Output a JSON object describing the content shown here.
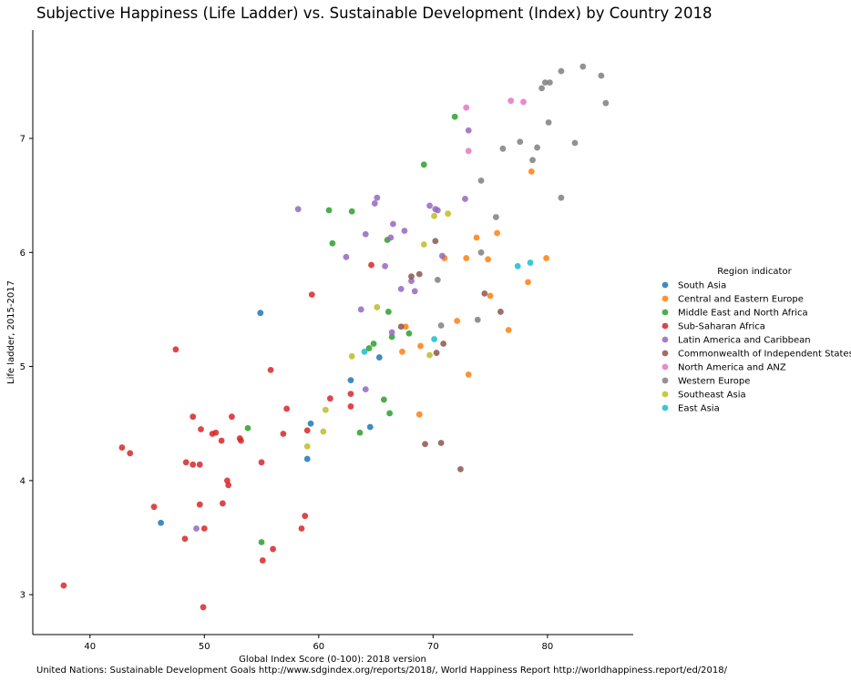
{
  "chart_data": {
    "type": "scatter",
    "title": "Subjective Happiness (Life Ladder) vs. Sustainable Development (Index) by Country 2018",
    "xlabel": "Global Index Score (0-100): 2018 version",
    "ylabel": "Life ladder, 2015-2017",
    "source": "United Nations: Sustainable Development Goals http://www.sdgindex.org/reports/2018/, World Happiness Report http://worldhappiness.report/ed/2018/",
    "xlim": [
      35.0,
      87.5
    ],
    "ylim": [
      2.65,
      7.95
    ],
    "xticks": [
      40,
      50,
      60,
      70,
      80
    ],
    "yticks": [
      3,
      4,
      5,
      6,
      7
    ],
    "grid": false,
    "legend_title": "Region indicator",
    "legend_position": "right",
    "series": [
      {
        "name": "South Asia",
        "color": "#1f77b4",
        "points": [
          [
            54.9,
            5.47
          ],
          [
            46.2,
            3.63
          ],
          [
            59.3,
            4.5
          ],
          [
            59.0,
            4.19
          ],
          [
            62.8,
            4.88
          ],
          [
            65.3,
            5.08
          ],
          [
            64.5,
            4.47
          ]
        ]
      },
      {
        "name": "Central and Eastern Europe",
        "color": "#ff7f0e",
        "points": [
          [
            78.6,
            6.71
          ],
          [
            75.6,
            6.17
          ],
          [
            73.8,
            6.13
          ],
          [
            71.0,
            5.95
          ],
          [
            72.9,
            5.95
          ],
          [
            74.8,
            5.94
          ],
          [
            79.9,
            5.95
          ],
          [
            78.3,
            5.74
          ],
          [
            75.0,
            5.62
          ],
          [
            72.1,
            5.4
          ],
          [
            67.6,
            5.35
          ],
          [
            76.6,
            5.32
          ],
          [
            68.9,
            5.18
          ],
          [
            67.3,
            5.13
          ],
          [
            73.1,
            4.93
          ],
          [
            68.8,
            4.58
          ]
        ]
      },
      {
        "name": "Middle East and North Africa",
        "color": "#2ca02c",
        "points": [
          [
            71.9,
            7.19
          ],
          [
            69.2,
            6.77
          ],
          [
            60.9,
            6.37
          ],
          [
            62.9,
            6.36
          ],
          [
            61.2,
            6.08
          ],
          [
            66.0,
            6.11
          ],
          [
            66.1,
            5.48
          ],
          [
            67.9,
            5.29
          ],
          [
            66.4,
            5.26
          ],
          [
            64.8,
            5.2
          ],
          [
            64.4,
            5.16
          ],
          [
            65.7,
            4.71
          ],
          [
            53.8,
            4.46
          ],
          [
            66.2,
            4.59
          ],
          [
            63.6,
            4.42
          ],
          [
            55.0,
            3.46
          ]
        ]
      },
      {
        "name": "Sub-Saharan Africa",
        "color": "#d62728",
        "points": [
          [
            64.6,
            5.89
          ],
          [
            59.4,
            5.63
          ],
          [
            47.5,
            5.15
          ],
          [
            55.8,
            4.97
          ],
          [
            57.2,
            4.63
          ],
          [
            61.0,
            4.72
          ],
          [
            62.8,
            4.76
          ],
          [
            62.8,
            4.65
          ],
          [
            49.0,
            4.56
          ],
          [
            52.4,
            4.56
          ],
          [
            49.7,
            4.45
          ],
          [
            51.5,
            4.35
          ],
          [
            50.7,
            4.41
          ],
          [
            51.0,
            4.42
          ],
          [
            53.1,
            4.37
          ],
          [
            53.2,
            4.35
          ],
          [
            56.9,
            4.41
          ],
          [
            59.0,
            4.44
          ],
          [
            42.8,
            4.29
          ],
          [
            43.5,
            4.24
          ],
          [
            48.4,
            4.16
          ],
          [
            49.0,
            4.14
          ],
          [
            49.6,
            4.14
          ],
          [
            55.0,
            4.16
          ],
          [
            52.0,
            4.0
          ],
          [
            52.1,
            3.96
          ],
          [
            45.6,
            3.77
          ],
          [
            49.6,
            3.79
          ],
          [
            51.6,
            3.8
          ],
          [
            58.8,
            3.69
          ],
          [
            48.3,
            3.49
          ],
          [
            50.0,
            3.58
          ],
          [
            58.5,
            3.58
          ],
          [
            56.0,
            3.4
          ],
          [
            55.1,
            3.3
          ],
          [
            37.7,
            3.08
          ],
          [
            49.9,
            2.89
          ]
        ]
      },
      {
        "name": "Latin America and Caribbean",
        "color": "#9467bd",
        "points": [
          [
            73.1,
            7.07
          ],
          [
            58.2,
            6.38
          ],
          [
            65.1,
            6.48
          ],
          [
            64.9,
            6.43
          ],
          [
            69.7,
            6.41
          ],
          [
            70.2,
            6.38
          ],
          [
            70.4,
            6.37
          ],
          [
            72.8,
            6.47
          ],
          [
            66.5,
            6.25
          ],
          [
            67.5,
            6.19
          ],
          [
            64.1,
            6.16
          ],
          [
            66.3,
            6.13
          ],
          [
            62.4,
            5.96
          ],
          [
            70.8,
            5.97
          ],
          [
            65.8,
            5.88
          ],
          [
            68.1,
            5.75
          ],
          [
            67.2,
            5.68
          ],
          [
            68.4,
            5.66
          ],
          [
            63.7,
            5.5
          ],
          [
            66.4,
            5.3
          ],
          [
            64.1,
            4.8
          ],
          [
            49.3,
            3.58
          ]
        ]
      },
      {
        "name": "Commonwealth of Independent States",
        "color": "#8c564b",
        "points": [
          [
            70.2,
            6.1
          ],
          [
            68.1,
            5.79
          ],
          [
            68.8,
            5.81
          ],
          [
            74.5,
            5.64
          ],
          [
            75.9,
            5.48
          ],
          [
            67.2,
            5.35
          ],
          [
            70.9,
            5.2
          ],
          [
            70.3,
            5.12
          ],
          [
            69.3,
            4.32
          ],
          [
            70.7,
            4.33
          ],
          [
            72.4,
            4.1
          ]
        ]
      },
      {
        "name": "North America and ANZ",
        "color": "#e377c2",
        "points": [
          [
            76.8,
            7.33
          ],
          [
            77.9,
            7.32
          ],
          [
            72.9,
            7.27
          ],
          [
            73.1,
            6.89
          ]
        ]
      },
      {
        "name": "Western Europe",
        "color": "#7f7f7f",
        "points": [
          [
            83.1,
            7.63
          ],
          [
            81.2,
            7.59
          ],
          [
            84.7,
            7.55
          ],
          [
            79.8,
            7.49
          ],
          [
            80.2,
            7.49
          ],
          [
            79.5,
            7.44
          ],
          [
            85.1,
            7.31
          ],
          [
            80.1,
            7.14
          ],
          [
            77.6,
            6.97
          ],
          [
            82.4,
            6.96
          ],
          [
            76.1,
            6.91
          ],
          [
            79.1,
            6.92
          ],
          [
            78.7,
            6.81
          ],
          [
            74.2,
            6.63
          ],
          [
            81.2,
            6.48
          ],
          [
            75.5,
            6.31
          ],
          [
            74.2,
            6.0
          ],
          [
            70.4,
            5.76
          ],
          [
            70.7,
            5.36
          ],
          [
            73.9,
            5.41
          ]
        ]
      },
      {
        "name": "Southeast Asia",
        "color": "#bcbd22",
        "points": [
          [
            71.3,
            6.34
          ],
          [
            70.1,
            6.32
          ],
          [
            69.2,
            6.07
          ],
          [
            65.1,
            5.52
          ],
          [
            62.9,
            5.09
          ],
          [
            69.7,
            5.1
          ],
          [
            60.6,
            4.62
          ],
          [
            60.4,
            4.43
          ],
          [
            59.0,
            4.3
          ]
        ]
      },
      {
        "name": "East Asia",
        "color": "#17becf",
        "points": [
          [
            78.5,
            5.91
          ],
          [
            77.4,
            5.88
          ],
          [
            64.0,
            5.13
          ],
          [
            70.1,
            5.24
          ]
        ]
      }
    ]
  }
}
